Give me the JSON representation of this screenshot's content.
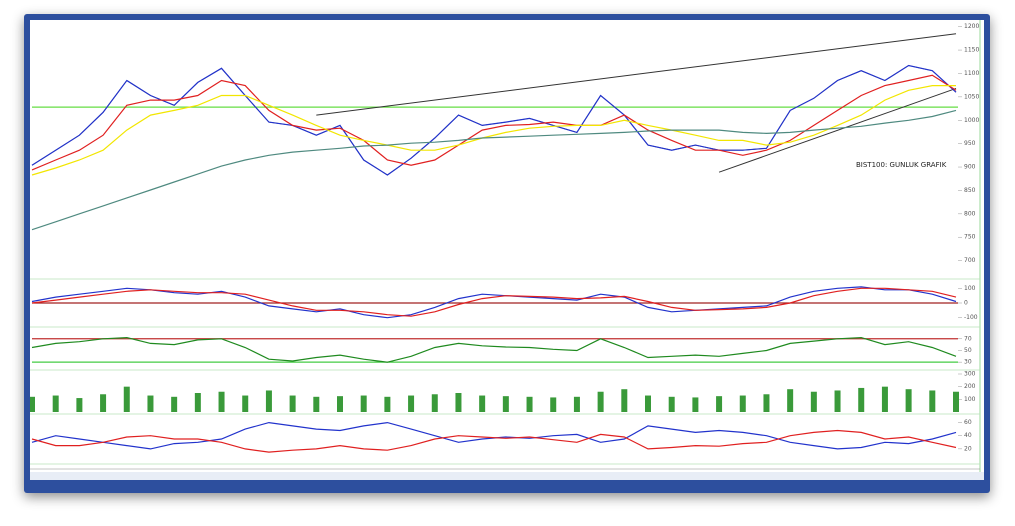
{
  "chart_data": [
    {
      "type": "line",
      "annotation": "BIST100: GUNLUK GRAFIK",
      "ylim": [
        665,
        1210
      ],
      "yticks": [
        700,
        750,
        800,
        850,
        900,
        950,
        1000,
        1050,
        1100,
        1150,
        1200
      ],
      "series": [
        {
          "color": "#1a1a1a",
          "values": [
            904,
            936,
            968,
            1017,
            1085,
            1053,
            1032,
            1081,
            1111,
            1053,
            996,
            989,
            968,
            989,
            915,
            883,
            919,
            962,
            1011,
            989,
            996,
            1004,
            989,
            974,
            1053,
            1011,
            947,
            936,
            947,
            936,
            936,
            940,
            1021,
            1047,
            1085,
            1106,
            1085,
            1117,
            1106,
            1060
          ]
        },
        {
          "color": "#2233cc",
          "values": [
            904,
            936,
            968,
            1017,
            1085,
            1053,
            1032,
            1081,
            1111,
            1053,
            996,
            989,
            968,
            989,
            915,
            883,
            919,
            962,
            1011,
            989,
            996,
            1004,
            989,
            974,
            1053,
            1011,
            947,
            936,
            947,
            936,
            936,
            940,
            1021,
            1047,
            1085,
            1106,
            1085,
            1117,
            1106,
            1060
          ]
        },
        {
          "color": "#e02020",
          "values": [
            894,
            915,
            936,
            968,
            1032,
            1043,
            1043,
            1053,
            1085,
            1074,
            1021,
            989,
            979,
            983,
            957,
            915,
            904,
            915,
            947,
            979,
            989,
            991,
            996,
            989,
            989,
            1011,
            979,
            957,
            936,
            936,
            925,
            936,
            957,
            989,
            1021,
            1053,
            1074,
            1085,
            1096,
            1064
          ]
        },
        {
          "color": "#f2e600",
          "values": [
            883,
            898,
            915,
            936,
            979,
            1011,
            1021,
            1032,
            1053,
            1053,
            1032,
            1011,
            989,
            968,
            957,
            947,
            936,
            936,
            947,
            962,
            974,
            983,
            987,
            989,
            989,
            1000,
            989,
            979,
            968,
            957,
            957,
            947,
            953,
            968,
            989,
            1011,
            1043,
            1064,
            1074,
            1074
          ]
        },
        {
          "color": "#4f8a80",
          "values": [
            766,
            783,
            800,
            817,
            834,
            851,
            868,
            885,
            902,
            915,
            925,
            932,
            936,
            940,
            945,
            947,
            951,
            953,
            957,
            962,
            964,
            966,
            968,
            970,
            972,
            974,
            977,
            979,
            979,
            979,
            974,
            972,
            974,
            979,
            983,
            987,
            994,
            1000,
            1008,
            1021
          ]
        }
      ],
      "hlines": [
        {
          "value": 1028,
          "color": "#66dd44"
        }
      ],
      "trendlines": [
        {
          "points": [
            [
              12,
              1011
            ],
            [
              39,
              1185
            ]
          ],
          "color": "#333333"
        },
        {
          "points": [
            [
              29,
              889
            ],
            [
              39,
              1068
            ]
          ],
          "color": "#333333"
        }
      ]
    },
    {
      "type": "line",
      "ylim": [
        -150,
        150
      ],
      "yticks": [
        -100,
        0,
        100
      ],
      "series": [
        {
          "color": "#2233cc",
          "values": [
            10,
            40,
            60,
            80,
            100,
            90,
            70,
            60,
            80,
            40,
            -20,
            -40,
            -60,
            -40,
            -80,
            -100,
            -80,
            -30,
            30,
            60,
            50,
            40,
            30,
            20,
            60,
            40,
            -30,
            -60,
            -50,
            -40,
            -30,
            -20,
            40,
            80,
            100,
            110,
            90,
            90,
            60,
            10
          ]
        },
        {
          "color": "#e02020",
          "values": [
            0,
            20,
            40,
            60,
            80,
            90,
            80,
            70,
            70,
            60,
            20,
            -20,
            -50,
            -50,
            -60,
            -80,
            -90,
            -60,
            -10,
            30,
            50,
            45,
            40,
            30,
            35,
            45,
            10,
            -30,
            -50,
            -45,
            -40,
            -30,
            0,
            50,
            80,
            100,
            100,
            90,
            80,
            40
          ]
        }
      ],
      "hlines": [
        {
          "value": 0,
          "color": "#a02020"
        }
      ]
    },
    {
      "type": "line",
      "ylim": [
        20,
        85
      ],
      "yticks": [
        30,
        50,
        70
      ],
      "series": [
        {
          "color": "#1f8a1f",
          "values": [
            55,
            62,
            65,
            70,
            72,
            62,
            60,
            68,
            70,
            55,
            35,
            32,
            38,
            42,
            35,
            30,
            40,
            55,
            62,
            58,
            56,
            55,
            52,
            50,
            70,
            55,
            38,
            40,
            42,
            40,
            45,
            50,
            62,
            66,
            70,
            72,
            60,
            65,
            55,
            40
          ]
        }
      ],
      "hlines": [
        {
          "value": 70,
          "color": "#c03030"
        },
        {
          "value": 30,
          "color": "#44cc44"
        }
      ]
    },
    {
      "type": "bar",
      "ylim": [
        0,
        300
      ],
      "yticks": [
        100,
        200,
        300
      ],
      "color": "#3a9a3a",
      "values": [
        120,
        130,
        110,
        140,
        200,
        130,
        120,
        150,
        160,
        130,
        170,
        130,
        120,
        125,
        130,
        120,
        130,
        140,
        150,
        130,
        125,
        120,
        115,
        120,
        160,
        180,
        130,
        120,
        115,
        125,
        130,
        140,
        180,
        160,
        170,
        190,
        200,
        180,
        170,
        160
      ]
    },
    {
      "type": "line",
      "ylim": [
        0,
        70
      ],
      "yticks": [
        20,
        40,
        60
      ],
      "series": [
        {
          "color": "#2233cc",
          "values": [
            30,
            40,
            35,
            30,
            25,
            20,
            28,
            30,
            35,
            50,
            60,
            55,
            50,
            48,
            55,
            60,
            50,
            40,
            30,
            35,
            38,
            36,
            40,
            42,
            30,
            35,
            55,
            50,
            45,
            48,
            45,
            40,
            30,
            25,
            20,
            22,
            30,
            28,
            35,
            45
          ]
        },
        {
          "color": "#e02020",
          "values": [
            35,
            25,
            25,
            30,
            38,
            40,
            35,
            35,
            30,
            20,
            15,
            18,
            20,
            25,
            20,
            18,
            25,
            35,
            40,
            38,
            36,
            38,
            34,
            30,
            42,
            38,
            20,
            22,
            25,
            24,
            28,
            30,
            40,
            45,
            48,
            45,
            35,
            38,
            30,
            22
          ]
        }
      ]
    }
  ]
}
